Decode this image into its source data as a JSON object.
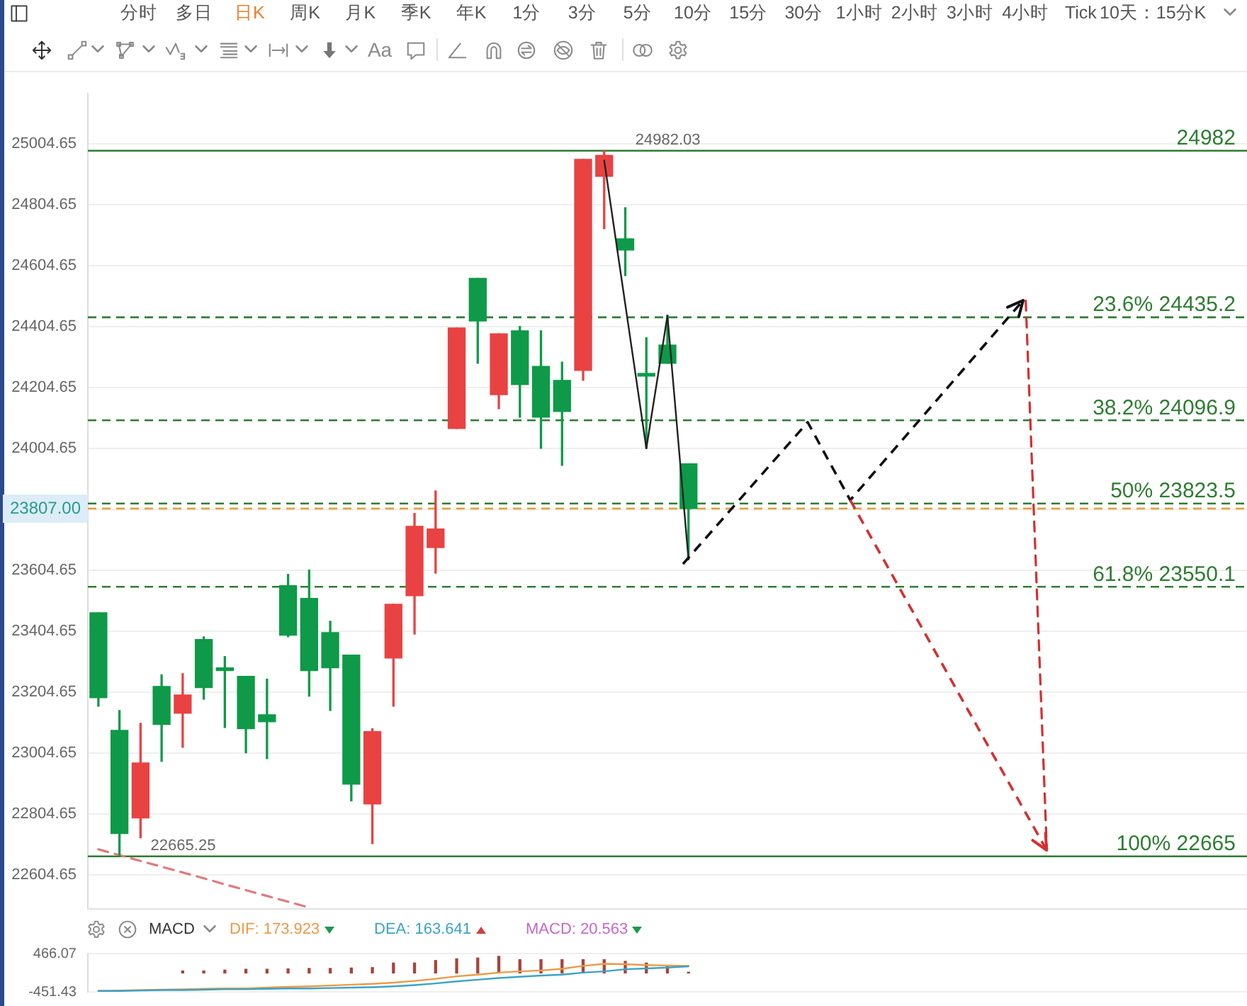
{
  "chart_data": [
    {
      "type": "candlestick",
      "categories": [
        null,
        null,
        null,
        null,
        null,
        null,
        null,
        null,
        null,
        null,
        null,
        null,
        null,
        null,
        null,
        null,
        null,
        null,
        null,
        null,
        null,
        null,
        null,
        null,
        null,
        null,
        null,
        null,
        null,
        null,
        null,
        null,
        null,
        null,
        null,
        null,
        null,
        null,
        null,
        null,
        null,
        null,
        null,
        null,
        null,
        null,
        null,
        null,
        null,
        null,
        null,
        null,
        null,
        null,
        null
      ],
      "ohlc": [
        [
          23465,
          23465,
          23158,
          23186
        ],
        [
          23079,
          23144,
          22665.25,
          22740
        ],
        [
          22791,
          23102,
          22726,
          22972
        ],
        [
          23223,
          23261,
          22977,
          23098
        ],
        [
          23135,
          23265,
          23023,
          23195
        ],
        [
          23377,
          23386,
          23181,
          23219
        ],
        [
          23284,
          23321,
          23088,
          23275
        ],
        [
          23256,
          23256,
          23005,
          23084
        ],
        [
          23130,
          23247,
          22986,
          23107
        ],
        [
          23554,
          23591,
          23386,
          23391
        ],
        [
          23512,
          23605,
          23191,
          23275
        ],
        [
          23400,
          23437,
          23144,
          23284
        ],
        [
          23326,
          23326,
          22847,
          22902
        ],
        [
          22837,
          23084,
          22707,
          23075
        ],
        [
          23316,
          23493,
          23158,
          23493
        ],
        [
          23521,
          23791,
          23395,
          23749
        ],
        [
          23679,
          23865,
          23595,
          23740
        ],
        [
          24070,
          24400,
          24070,
          24400
        ],
        [
          24563,
          24563,
          24284,
          24423
        ],
        [
          24181,
          24381,
          24135,
          24381
        ],
        [
          24391,
          24405,
          24107,
          24214
        ],
        [
          24274,
          24391,
          24005,
          24107
        ],
        [
          24228,
          24288,
          23949,
          24126
        ],
        [
          24261,
          24954,
          24228,
          24954
        ],
        [
          24898,
          24982.03,
          24726,
          24967
        ],
        [
          24693,
          24795,
          24572,
          24656
        ],
        [
          24251,
          24368,
          24005,
          24242
        ],
        [
          24344,
          24442,
          24284,
          24284
        ],
        [
          23954,
          23954,
          23642,
          23807
        ],
        null,
        null,
        null,
        null,
        null,
        null,
        null,
        null,
        null,
        null,
        null,
        null,
        null,
        null,
        null,
        null,
        null,
        null,
        null,
        null,
        null,
        null,
        null,
        null,
        null,
        null
      ],
      "colors": [
        "#0e9a48",
        "#0e9a48",
        "#e94242",
        "#0e9a48",
        "#e94242",
        "#0e9a48",
        "#0e9a48",
        "#0e9a48",
        "#0e9a48",
        "#0e9a48",
        "#0e9a48",
        "#0e9a48",
        "#0e9a48",
        "#e94242",
        "#e94242",
        "#e94242",
        "#e94242",
        "#e94242",
        "#0e9a48",
        "#e94242",
        "#0e9a48",
        "#0e9a48",
        "#0e9a48",
        "#e94242",
        "#e94242",
        "#0e9a48",
        "#0e9a48",
        "#0e9a48",
        "#0e9a48",
        null,
        null,
        null,
        null,
        null,
        null,
        null,
        null,
        null,
        null,
        null,
        null,
        null,
        null,
        null,
        null,
        null,
        null,
        null,
        null,
        null,
        null,
        null,
        null,
        null,
        null
      ],
      "series": [
        {
          "type": "line",
          "color": "#222222",
          "line_style": "solid",
          "values": [
            null,
            null,
            null,
            null,
            null,
            null,
            null,
            null,
            null,
            null,
            null,
            null,
            null,
            null,
            null,
            null,
            null,
            null,
            null,
            null,
            null,
            null,
            null,
            null,
            24950,
            24478,
            24005,
            24440,
            23640,
            null,
            null,
            null,
            null,
            null,
            null,
            null,
            null,
            null,
            null,
            null,
            null,
            null,
            null,
            null,
            null,
            null,
            null,
            null,
            null,
            null,
            null,
            null,
            null,
            null,
            null
          ]
        },
        {
          "type": "line",
          "color": "#d62f2f",
          "line_style": "dashed",
          "values": [
            null,
            null,
            null,
            null,
            null,
            null,
            null,
            null,
            null,
            null,
            null,
            null,
            null,
            null,
            null,
            null,
            null,
            null,
            null,
            null,
            null,
            null,
            null,
            null,
            null,
            null,
            null,
            null,
            null,
            null,
            null,
            null,
            null,
            null,
            null,
            null,
            null,
            null,
            null,
            null,
            null,
            null,
            null,
            null,
            24490,
            22690,
            null,
            null,
            null,
            null,
            null,
            null,
            null,
            null,
            null
          ]
        },
        {
          "type": "line",
          "color": "#e07a7a",
          "line_style": "dashed",
          "values": [
            22688,
            22669,
            22650,
            22631,
            22612,
            22593,
            22573,
            22554,
            22535,
            22516,
            22497,
            null,
            null,
            null,
            null,
            null,
            null,
            null,
            null,
            null,
            null,
            null,
            null,
            null,
            null,
            null,
            null,
            null,
            null,
            null,
            null,
            null,
            null,
            null,
            null,
            null,
            null,
            null,
            null,
            null,
            null,
            null,
            null,
            null,
            null,
            null,
            null,
            null,
            null,
            null,
            null,
            null,
            null,
            null,
            null
          ]
        }
      ],
      "ylim": [
        22490,
        25170
      ],
      "yticks": [
        22604.65,
        22804.65,
        23004.65,
        23204.65,
        23404.65,
        23604.65,
        {
          "value": 23804.65,
          "label": null
        },
        24004.65,
        24204.65,
        24404.65,
        24604.65,
        24804.65,
        25004.65
      ],
      "grid": "y",
      "ref_lines": [
        {
          "axis": "y",
          "value": 24982,
          "label": "24982",
          "color": "#2e7d32",
          "line_style": "solid"
        },
        {
          "axis": "y",
          "value": 24435.2,
          "label": "23.6% 24435.2",
          "color": "#2e7d32",
          "line_style": "dashed"
        },
        {
          "axis": "y",
          "value": 24096.9,
          "label": "38.2% 24096.9",
          "color": "#2e7d32",
          "line_style": "dashed"
        },
        {
          "axis": "y",
          "value": 23823.5,
          "label": "50% 23823.5",
          "color": "#2e7d32",
          "line_style": "dashed"
        },
        {
          "axis": "y",
          "value": 23550.1,
          "label": "61.8% 23550.1",
          "color": "#2e7d32",
          "line_style": "dashed"
        },
        {
          "axis": "y",
          "value": 22665,
          "label": "100% 22665",
          "color": "#2e7d32",
          "line_style": "solid"
        },
        {
          "axis": "y",
          "value": 23807,
          "label": "23807.00",
          "color": "#e8a040",
          "line_style": "dashed"
        }
      ],
      "annotations": [
        "分时",
        "多日",
        "日K",
        "周K",
        "月K",
        "季K",
        "年K",
        "1分",
        "3分",
        "5分",
        "10分",
        "15分",
        "30分",
        "1小时",
        "2小时",
        "3小时",
        "4小时",
        "Tick",
        "10天：15分K",
        "Aa",
        {
          "text": "24982.03",
          "y": 24982.03
        },
        {
          "text": "22665.25",
          "y": 22665.25
        }
      ]
    },
    {
      "type": "line",
      "title": "MACD",
      "categories": [
        null,
        null,
        null,
        null,
        null,
        null,
        null,
        null,
        null,
        null,
        null,
        null,
        null,
        null,
        null,
        null,
        null,
        null,
        null,
        null,
        null,
        null,
        null,
        null,
        null,
        null,
        null,
        null,
        null,
        null,
        null,
        null,
        null,
        null,
        null,
        null,
        null,
        null,
        null,
        null,
        null,
        null,
        null,
        null,
        null,
        null,
        null,
        null,
        null,
        null,
        null,
        null,
        null,
        null,
        null
      ],
      "series": [
        {
          "name": "DIF: 173.923",
          "color": "#ec9a45",
          "values": [
            -430,
            -420,
            -410,
            -400,
            -390,
            -380,
            -370,
            -370,
            -350,
            -330,
            -320,
            -300,
            -280,
            -260,
            -230,
            -190,
            -140,
            -80,
            -40,
            10,
            40,
            60,
            100,
            170,
            220,
            210,
            190,
            180,
            170,
            null,
            null,
            null,
            null,
            null,
            null,
            null,
            null,
            null,
            null,
            null,
            null,
            null,
            null,
            null,
            null,
            null,
            null,
            null,
            null,
            null,
            null,
            null,
            null,
            null,
            null
          ]
        },
        {
          "name": "DEA: 163.641",
          "color": "#3aa3c8",
          "values": [
            -430,
            -430,
            -420,
            -410,
            -410,
            -400,
            -390,
            -390,
            -380,
            -370,
            -370,
            -360,
            -350,
            -340,
            -320,
            -290,
            -250,
            -200,
            -160,
            -120,
            -90,
            -60,
            -40,
            10,
            40,
            90,
            110,
            130,
            160,
            null,
            null,
            null,
            null,
            null,
            null,
            null,
            null,
            null,
            null,
            null,
            null,
            null,
            null,
            null,
            null,
            null,
            null,
            null,
            null,
            null,
            null,
            null,
            null,
            null,
            null
          ]
        },
        {
          "name": "MACD: 20.563",
          "type": "bar",
          "color": "#c966c9",
          "colors": [
            "#a8443a",
            "#a8443a",
            "#a8443a",
            "#a8443a",
            "#a8443a",
            "#a8443a",
            "#a8443a",
            "#a8443a",
            "#a8443a",
            "#a8443a",
            "#a8443a",
            "#a8443a",
            "#a8443a",
            "#a8443a",
            "#a8443a",
            "#a8443a",
            "#a8443a",
            "#a8443a",
            "#a8443a",
            "#a8443a",
            "#a8443a",
            "#a8443a",
            "#a8443a",
            "#a8443a",
            "#a8443a",
            "#a8443a",
            "#a8443a",
            "#a8443a",
            "#a8443a",
            null,
            null,
            null,
            null,
            null,
            null,
            null,
            null,
            null,
            null,
            null,
            null,
            null,
            null,
            null,
            null,
            null,
            null,
            null,
            null,
            null,
            null,
            null,
            null,
            null,
            null
          ],
          "values": [
            null,
            null,
            null,
            null,
            50,
            50,
            70,
            90,
            90,
            100,
            110,
            110,
            120,
            130,
            240,
            240,
            300,
            340,
            360,
            400,
            320,
            320,
            320,
            320,
            320,
            280,
            240,
            170,
            20,
            null,
            null,
            null,
            null,
            null,
            null,
            null,
            null,
            null,
            null,
            null,
            null,
            null,
            null,
            null,
            null,
            null,
            null,
            null,
            null,
            null,
            null,
            null,
            null,
            null,
            null
          ]
        }
      ],
      "ylim": [
        -451.43,
        466.07
      ],
      "yticks": [
        -451.43,
        466.07
      ],
      "grid": "y",
      "legend": "top left"
    }
  ]
}
